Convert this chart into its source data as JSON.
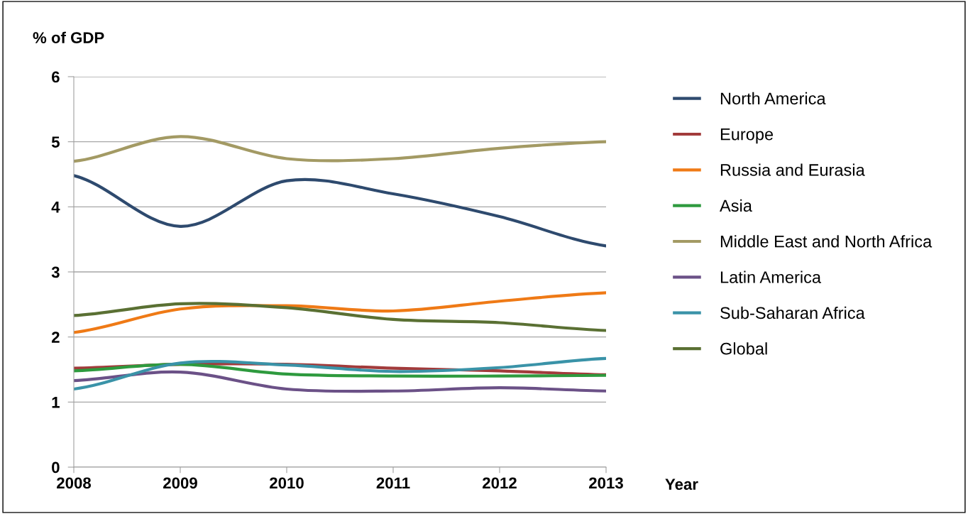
{
  "chart_data": {
    "type": "line",
    "ylabel": "% of GDP",
    "xlabel": "Year",
    "x": [
      2008,
      2009,
      2010,
      2011,
      2012,
      2013
    ],
    "series": [
      {
        "name": "North America",
        "color": "#2e4a6e",
        "values": [
          4.48,
          3.7,
          4.4,
          4.2,
          3.85,
          3.4
        ]
      },
      {
        "name": "Europe",
        "color": "#a23b3b",
        "values": [
          1.52,
          1.58,
          1.58,
          1.52,
          1.48,
          1.42
        ]
      },
      {
        "name": "Russia and Eurasia",
        "color": "#ef7a16",
        "values": [
          2.07,
          2.43,
          2.48,
          2.4,
          2.55,
          2.68
        ]
      },
      {
        "name": "Asia",
        "color": "#2e9a3e",
        "values": [
          1.48,
          1.58,
          1.43,
          1.4,
          1.4,
          1.41
        ]
      },
      {
        "name": "Middle East and North Africa",
        "color": "#a39a64",
        "values": [
          4.7,
          5.08,
          4.74,
          4.74,
          4.9,
          5.0
        ]
      },
      {
        "name": "Latin America",
        "color": "#6b5187",
        "values": [
          1.33,
          1.46,
          1.2,
          1.17,
          1.22,
          1.17
        ]
      },
      {
        "name": "Sub-Saharan Africa",
        "color": "#3a93a8",
        "values": [
          1.2,
          1.6,
          1.57,
          1.47,
          1.53,
          1.67
        ]
      },
      {
        "name": "Global",
        "color": "#5a7033",
        "values": [
          2.33,
          2.51,
          2.45,
          2.27,
          2.22,
          2.1
        ]
      }
    ],
    "xlim": [
      2008,
      2013
    ],
    "xticks": [
      2008,
      2009,
      2010,
      2011,
      2012,
      2013
    ],
    "ylim": [
      0,
      6
    ],
    "yticks": [
      0,
      1,
      2,
      3,
      4,
      5,
      6
    ],
    "grid": "y",
    "legend": "right",
    "marker": "none",
    "line_style": "solid"
  }
}
